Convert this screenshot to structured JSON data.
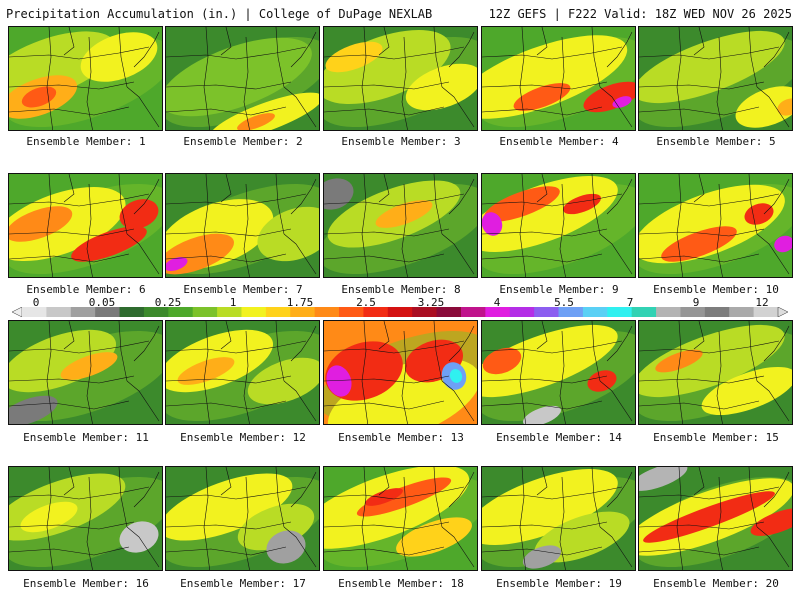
{
  "header": {
    "left_title": "Precipitation Accumulation (in.) | College of DuPage NEXLAB",
    "right_title": "12Z GEFS | F222 Valid: 18Z WED NOV 26 2025"
  },
  "colorbar": {
    "labels": [
      "0",
      "0.05",
      "0.25",
      "1",
      "1.75",
      "2.5",
      "3.25",
      "4",
      "5.5",
      "7",
      "9",
      "12"
    ],
    "colors": [
      "#e6e6e6",
      "#c8c8c8",
      "#a0a0a0",
      "#7a7a7a",
      "#2f6b2f",
      "#3c8a2c",
      "#4ea82b",
      "#7cc22a",
      "#b9dc25",
      "#f2f21f",
      "#ffd21a",
      "#ffae18",
      "#ff8a17",
      "#ff5a15",
      "#f22c14",
      "#d41212",
      "#aa0e22",
      "#8a0b3a",
      "#c0148c",
      "#e01ee0",
      "#b42ee6",
      "#8c5ef0",
      "#6ea0f5",
      "#5ad0f5",
      "#30f0f0",
      "#32d2b4",
      "#b4b4b4",
      "#969696",
      "#7d7d7d",
      "#aaaaaa",
      "#d2d2d2"
    ]
  },
  "panels": [
    {
      "label": "Ensemble Member: 1"
    },
    {
      "label": "Ensemble Member: 2"
    },
    {
      "label": "Ensemble Member: 3"
    },
    {
      "label": "Ensemble Member: 4"
    },
    {
      "label": "Ensemble Member: 5"
    },
    {
      "label": "Ensemble Member: 6"
    },
    {
      "label": "Ensemble Member: 7"
    },
    {
      "label": "Ensemble Member: 8"
    },
    {
      "label": "Ensemble Member: 9"
    },
    {
      "label": "Ensemble Member: 10"
    },
    {
      "label": "Ensemble Member: 11"
    },
    {
      "label": "Ensemble Member: 12"
    },
    {
      "label": "Ensemble Member: 13"
    },
    {
      "label": "Ensemble Member: 14"
    },
    {
      "label": "Ensemble Member: 15"
    },
    {
      "label": "Ensemble Member: 16"
    },
    {
      "label": "Ensemble Member: 17"
    },
    {
      "label": "Ensemble Member: 18"
    },
    {
      "label": "Ensemble Member: 19"
    },
    {
      "label": "Ensemble Member: 20"
    }
  ]
}
